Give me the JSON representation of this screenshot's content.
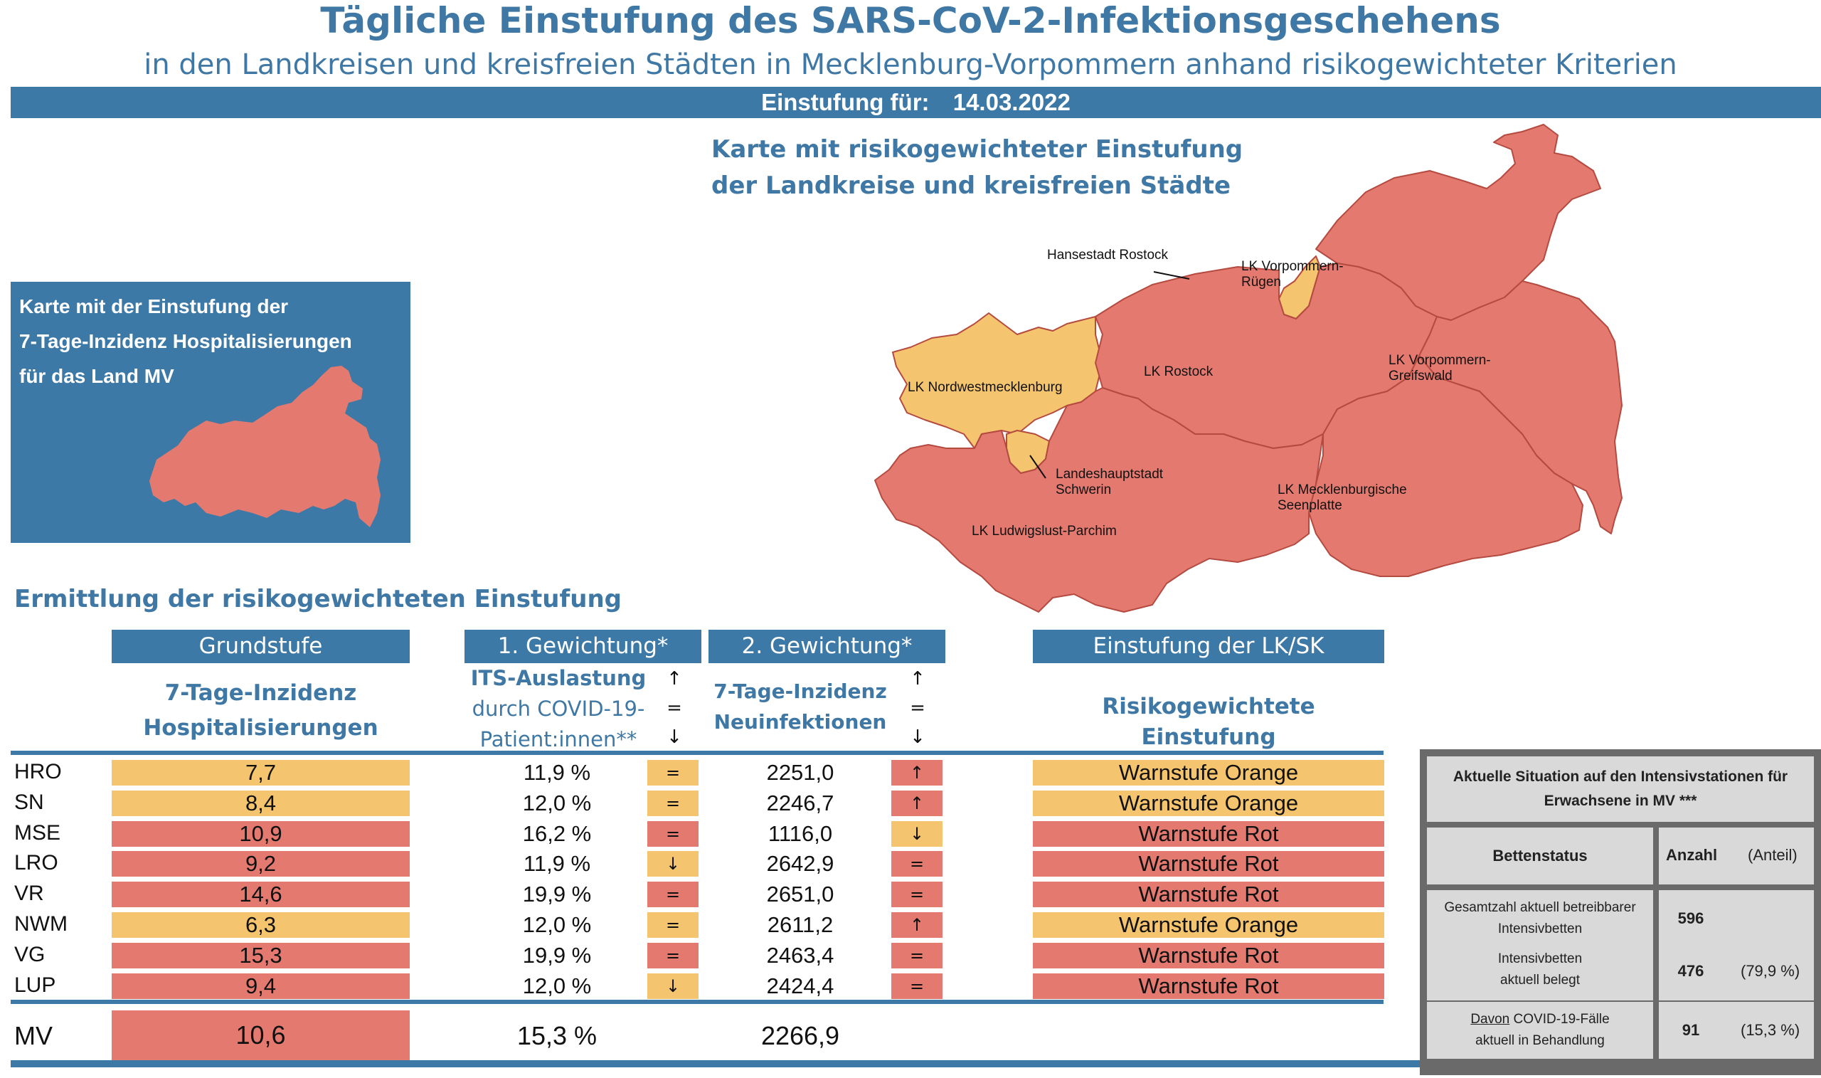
{
  "header": {
    "title": "Tägliche Einstufung des SARS-CoV-2-Infektionsgeschehens",
    "subtitle": "in den Landkreisen und kreisfreien Städten in Mecklenburg-Vorpommern anhand risikogewichteter Kriterien",
    "date_label": "Einstufung für:",
    "date_value": "14.03.2022"
  },
  "map": {
    "title_line1": "Karte mit risikogewichteter Einstufung",
    "title_line2": "der Landkreise und kreisfreien Städte",
    "labels": {
      "hro": "Hansestadt Rostock",
      "vr_1": "LK Vorpommern-",
      "vr_2": "Rügen",
      "nwm": "LK Nordwestmecklenburg",
      "lro": "LK Rostock",
      "vg_1": "LK Vorpommern-",
      "vg_2": "Greifswald",
      "sn_1": "Landeshauptstadt",
      "sn_2": "Schwerin",
      "mse_1": "LK Mecklenburgische",
      "mse_2": "Seenplatte",
      "lup": "LK Ludwigslust-Parchim"
    },
    "colors": {
      "orange": "#f5c46e",
      "red": "#e47a6f",
      "border": "#b44a40"
    }
  },
  "hosp_box": {
    "line1": "Karte mit der Einstufung der",
    "line2": "7-Tage-Inzidenz Hospitalisierungen",
    "line3": "für das Land MV"
  },
  "section": {
    "title": "Ermittlung der risikogewichteten Einstufung"
  },
  "columns": {
    "grundstufe": "Grundstufe",
    "gew1": "1. Gewichtung*",
    "gew2": "2. Gewichtung*",
    "einstufung": "Einstufung der LK/SK",
    "grund_sub1": "7-Tage-Inzidenz",
    "grund_sub2": "Hospitalisierungen",
    "gew1_sub1": "ITS-Auslastung",
    "gew1_sub2": "durch COVID-19-",
    "gew1_sub3": "Patient:innen**",
    "gew2_sub1": "7-Tage-Inzidenz",
    "gew2_sub2": "Neuinfektionen",
    "einst_sub": "Risikogewichtete Einstufung",
    "arrow_up": "↑",
    "arrow_eq": "=",
    "arrow_down": "↓"
  },
  "rows": [
    {
      "region": "HRO",
      "hosp": "7,7",
      "hosp_level": "orange",
      "its": "11,9 %",
      "its_trend": "=",
      "its_trend_level": "orange",
      "inz": "2251,0",
      "inz_trend": "↑",
      "inz_trend_level": "red",
      "result": "Warnstufe Orange",
      "result_level": "orange"
    },
    {
      "region": "SN",
      "hosp": "8,4",
      "hosp_level": "orange",
      "its": "12,0 %",
      "its_trend": "=",
      "its_trend_level": "orange",
      "inz": "2246,7",
      "inz_trend": "↑",
      "inz_trend_level": "red",
      "result": "Warnstufe Orange",
      "result_level": "orange"
    },
    {
      "region": "MSE",
      "hosp": "10,9",
      "hosp_level": "red",
      "its": "16,2 %",
      "its_trend": "=",
      "its_trend_level": "red",
      "inz": "1116,0",
      "inz_trend": "↓",
      "inz_trend_level": "orange",
      "result": "Warnstufe Rot",
      "result_level": "red"
    },
    {
      "region": "LRO",
      "hosp": "9,2",
      "hosp_level": "red",
      "its": "11,9 %",
      "its_trend": "↓",
      "its_trend_level": "orange",
      "inz": "2642,9",
      "inz_trend": "=",
      "inz_trend_level": "red",
      "result": "Warnstufe Rot",
      "result_level": "red"
    },
    {
      "region": "VR",
      "hosp": "14,6",
      "hosp_level": "red",
      "its": "19,9 %",
      "its_trend": "=",
      "its_trend_level": "red",
      "inz": "2651,0",
      "inz_trend": "=",
      "inz_trend_level": "red",
      "result": "Warnstufe Rot",
      "result_level": "red"
    },
    {
      "region": "NWM",
      "hosp": "6,3",
      "hosp_level": "orange",
      "its": "12,0 %",
      "its_trend": "=",
      "its_trend_level": "orange",
      "inz": "2611,2",
      "inz_trend": "↑",
      "inz_trend_level": "red",
      "result": "Warnstufe Orange",
      "result_level": "orange"
    },
    {
      "region": "VG",
      "hosp": "15,3",
      "hosp_level": "red",
      "its": "19,9 %",
      "its_trend": "=",
      "its_trend_level": "red",
      "inz": "2463,4",
      "inz_trend": "=",
      "inz_trend_level": "red",
      "result": "Warnstufe Rot",
      "result_level": "red"
    },
    {
      "region": "LUP",
      "hosp": "9,4",
      "hosp_level": "red",
      "its": "12,0 %",
      "its_trend": "↓",
      "its_trend_level": "orange",
      "inz": "2424,4",
      "inz_trend": "=",
      "inz_trend_level": "red",
      "result": "Warnstufe Rot",
      "result_level": "red"
    }
  ],
  "total": {
    "region": "MV",
    "hosp": "10,6",
    "its": "15,3 %",
    "inz": "2266,9"
  },
  "its_table": {
    "title_line1": "Aktuelle Situation auf den Intensivstationen für",
    "title_line2": "Erwachsene in MV ***",
    "col_status": "Bettenstatus",
    "col_anzahl": "Anzahl",
    "col_anteil": "(Anteil)",
    "rows": [
      {
        "label1": "Gesamtzahl aktuell betreibbarer",
        "label2": "Intensivbetten",
        "label_prefix": "",
        "anzahl": "596",
        "anteil": ""
      },
      {
        "label1": "Intensivbetten",
        "label2": "aktuell belegt",
        "label_prefix": "",
        "anzahl": "476",
        "anteil": "(79,9 %)"
      },
      {
        "label1": " COVID-19-Fälle",
        "label2": "aktuell in Behandlung",
        "label_prefix": "Davon",
        "anzahl": "91",
        "anteil": "(15,3 %)"
      }
    ]
  }
}
